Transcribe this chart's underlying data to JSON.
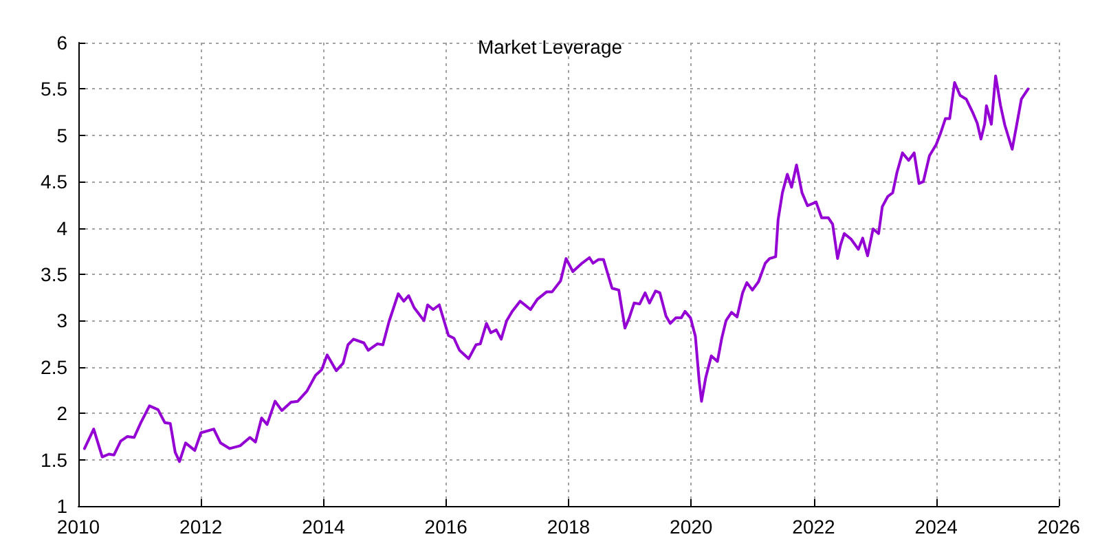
{
  "chart_data": {
    "type": "line",
    "title": "Market Leverage",
    "xlim": [
      2010,
      2026
    ],
    "xticks": [
      2010,
      2012,
      2014,
      2016,
      2018,
      2020,
      2022,
      2024,
      2026
    ],
    "ylim": [
      1,
      6
    ],
    "yticks": [
      1,
      1.5,
      2,
      2.5,
      3,
      3.5,
      4,
      4.5,
      5,
      5.5,
      6
    ],
    "grid": true,
    "marker": "none",
    "line_style": "solid",
    "series": [
      {
        "color": "#9400d3",
        "x": [
          2010.1,
          2010.25,
          2010.39,
          2010.5,
          2010.58,
          2010.69,
          2010.8,
          2010.91,
          2011.02,
          2011.16,
          2011.3,
          2011.41,
          2011.5,
          2011.58,
          2011.65,
          2011.75,
          2011.9,
          2012.0,
          2012.21,
          2012.32,
          2012.47,
          2012.64,
          2012.8,
          2012.89,
          2012.99,
          2013.08,
          2013.21,
          2013.32,
          2013.47,
          2013.58,
          2013.73,
          2013.87,
          2013.97,
          2014.06,
          2014.21,
          2014.32,
          2014.4,
          2014.49,
          2014.66,
          2014.73,
          2014.88,
          2014.97,
          2015.07,
          2015.22,
          2015.31,
          2015.39,
          2015.48,
          2015.64,
          2015.7,
          2015.79,
          2015.89,
          2016.04,
          2016.13,
          2016.22,
          2016.37,
          2016.49,
          2016.56,
          2016.66,
          2016.73,
          2016.82,
          2016.9,
          2016.99,
          2017.08,
          2017.21,
          2017.38,
          2017.49,
          2017.64,
          2017.73,
          2017.87,
          2017.96,
          2018.07,
          2018.22,
          2018.34,
          2018.4,
          2018.49,
          2018.57,
          2018.71,
          2018.82,
          2018.92,
          2018.99,
          2019.07,
          2019.16,
          2019.25,
          2019.32,
          2019.42,
          2019.49,
          2019.59,
          2019.66,
          2019.75,
          2019.84,
          2019.9,
          2019.99,
          2020.07,
          2020.13,
          2020.17,
          2020.24,
          2020.33,
          2020.43,
          2020.5,
          2020.57,
          2020.66,
          2020.75,
          2020.84,
          2020.91,
          2021.0,
          2021.1,
          2021.21,
          2021.28,
          2021.38,
          2021.42,
          2021.49,
          2021.57,
          2021.64,
          2021.72,
          2021.81,
          2021.9,
          2022.04,
          2022.13,
          2022.24,
          2022.31,
          2022.39,
          2022.44,
          2022.5,
          2022.61,
          2022.73,
          2022.8,
          2022.88,
          2022.97,
          2023.06,
          2023.12,
          2023.21,
          2023.29,
          2023.36,
          2023.45,
          2023.55,
          2023.64,
          2023.72,
          2023.79,
          2023.89,
          2024.0,
          2024.07,
          2024.15,
          2024.22,
          2024.3,
          2024.39,
          2024.49,
          2024.6,
          2024.67,
          2024.73,
          2024.79,
          2024.82,
          2024.9,
          2024.97,
          2025.05,
          2025.12,
          2025.24,
          2025.31,
          2025.39,
          2025.5
        ],
        "values": [
          1.62,
          1.83,
          1.53,
          1.56,
          1.55,
          1.7,
          1.75,
          1.74,
          1.9,
          2.08,
          2.04,
          1.9,
          1.89,
          1.58,
          1.48,
          1.68,
          1.6,
          1.79,
          1.83,
          1.68,
          1.62,
          1.65,
          1.74,
          1.69,
          1.95,
          1.88,
          2.13,
          2.03,
          2.12,
          2.13,
          2.24,
          2.41,
          2.47,
          2.63,
          2.46,
          2.54,
          2.74,
          2.8,
          2.76,
          2.68,
          2.75,
          2.74,
          2.99,
          3.29,
          3.21,
          3.27,
          3.14,
          3.0,
          3.17,
          3.12,
          3.17,
          2.84,
          2.81,
          2.68,
          2.59,
          2.74,
          2.75,
          2.97,
          2.87,
          2.9,
          2.8,
          3.0,
          3.1,
          3.21,
          3.12,
          3.23,
          3.31,
          3.31,
          3.43,
          3.67,
          3.53,
          3.62,
          3.68,
          3.62,
          3.66,
          3.66,
          3.35,
          3.33,
          2.92,
          3.03,
          3.19,
          3.18,
          3.3,
          3.19,
          3.32,
          3.3,
          3.05,
          2.97,
          3.03,
          3.03,
          3.1,
          3.03,
          2.83,
          2.36,
          2.13,
          2.39,
          2.62,
          2.56,
          2.81,
          3.0,
          3.09,
          3.04,
          3.3,
          3.41,
          3.33,
          3.42,
          3.62,
          3.67,
          3.69,
          4.09,
          4.38,
          4.58,
          4.44,
          4.68,
          4.38,
          4.24,
          4.28,
          4.11,
          4.11,
          4.04,
          3.67,
          3.82,
          3.94,
          3.88,
          3.77,
          3.89,
          3.7,
          3.99,
          3.94,
          4.23,
          4.34,
          4.38,
          4.6,
          4.81,
          4.73,
          4.81,
          4.48,
          4.5,
          4.78,
          4.9,
          5.02,
          5.18,
          5.18,
          5.57,
          5.43,
          5.39,
          5.24,
          5.13,
          4.96,
          5.12,
          5.32,
          5.12,
          5.64,
          5.32,
          5.11,
          4.85,
          5.1,
          5.39,
          5.5
        ]
      }
    ]
  }
}
